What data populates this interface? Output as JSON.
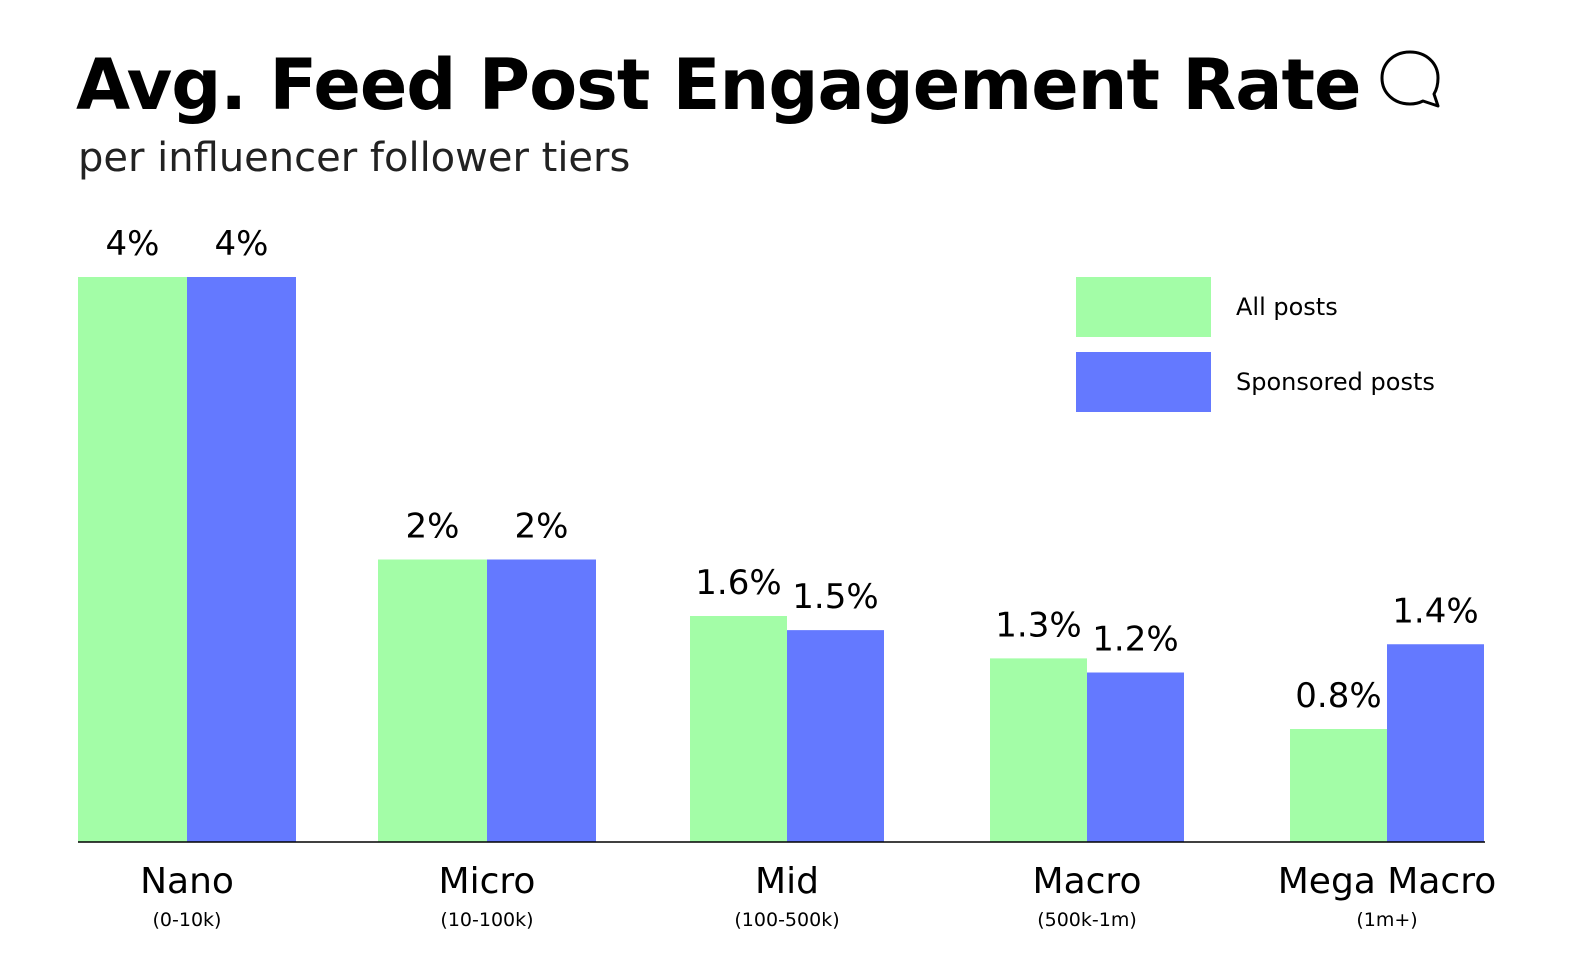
{
  "header": {
    "title": "Avg. Feed Post Engagement Rate",
    "subtitle": "per influencer follower tiers",
    "icon": "speech-bubble-icon"
  },
  "legend": {
    "items": [
      {
        "label": "All posts",
        "color": "#a3fda7"
      },
      {
        "label": "Sponsored posts",
        "color": "#6479ff"
      }
    ]
  },
  "chart_data": {
    "type": "bar",
    "title": "Avg. Feed Post Engagement Rate",
    "subtitle": "per influencer follower tiers",
    "categories": [
      "Nano",
      "Micro",
      "Mid",
      "Macro",
      "Mega Macro"
    ],
    "category_sublabels": [
      "(0-10k)",
      "(10-100k)",
      "(100-500k)",
      "(500k-1m)",
      "(1m+)"
    ],
    "series": [
      {
        "name": "All posts",
        "color": "#a3fda7",
        "values": [
          4,
          2,
          1.6,
          1.3,
          0.8
        ],
        "labels": [
          "4%",
          "2%",
          "1.6%",
          "1.3%",
          "0.8%"
        ]
      },
      {
        "name": "Sponsored posts",
        "color": "#6479ff",
        "values": [
          4,
          2,
          1.5,
          1.2,
          1.4
        ],
        "labels": [
          "4%",
          "2%",
          "1.5%",
          "1.2%",
          "1.4%"
        ]
      }
    ],
    "ylim": [
      0,
      4
    ],
    "grid": false,
    "legend_position": "top-right"
  }
}
